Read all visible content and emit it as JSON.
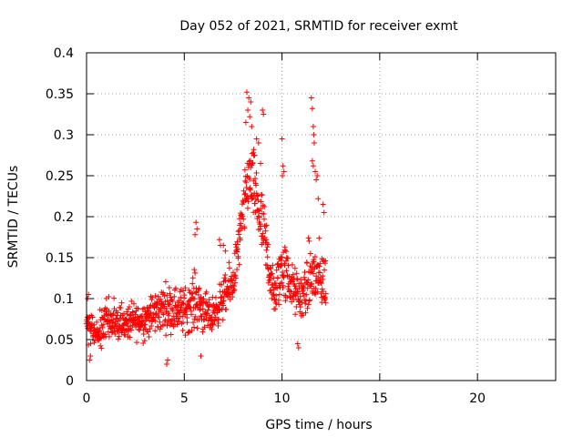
{
  "chart_data": {
    "type": "scatter",
    "title": "Day 052 of 2021, SRMTID for receiver exmt",
    "xlabel": "GPS time / hours",
    "ylabel": "SRMTID / TECUs",
    "xlim": [
      0,
      24
    ],
    "ylim": [
      0,
      0.4
    ],
    "x_ticks": [
      0,
      5,
      10,
      15,
      20
    ],
    "x_tick_labels": [
      "0",
      "5",
      "10",
      "15",
      "20"
    ],
    "y_ticks": [
      0,
      0.05,
      0.1,
      0.15,
      0.2,
      0.25,
      0.3,
      0.35,
      0.4
    ],
    "y_tick_labels": [
      "0",
      "0.05",
      "0.1",
      "0.15",
      "0.2",
      "0.25",
      "0.3",
      "0.35",
      "0.4"
    ],
    "grid": true,
    "marker": "plus",
    "color": "#ff0000",
    "series": [
      {
        "name": "SRMTID",
        "profile": [
          {
            "t": 0.0,
            "center": 0.07,
            "spread": 0.03
          },
          {
            "t": 0.5,
            "center": 0.055,
            "spread": 0.025
          },
          {
            "t": 1.0,
            "center": 0.075,
            "spread": 0.035
          },
          {
            "t": 2.0,
            "center": 0.07,
            "spread": 0.03
          },
          {
            "t": 3.0,
            "center": 0.075,
            "spread": 0.035
          },
          {
            "t": 4.0,
            "center": 0.09,
            "spread": 0.04
          },
          {
            "t": 5.0,
            "center": 0.085,
            "spread": 0.04
          },
          {
            "t": 5.6,
            "center": 0.1,
            "spread": 0.05
          },
          {
            "t": 6.3,
            "center": 0.075,
            "spread": 0.03
          },
          {
            "t": 7.0,
            "center": 0.1,
            "spread": 0.035
          },
          {
            "t": 7.5,
            "center": 0.12,
            "spread": 0.04
          },
          {
            "t": 8.0,
            "center": 0.2,
            "spread": 0.05
          },
          {
            "t": 8.3,
            "center": 0.25,
            "spread": 0.06
          },
          {
            "t": 8.7,
            "center": 0.22,
            "spread": 0.06
          },
          {
            "t": 9.2,
            "center": 0.16,
            "spread": 0.06
          },
          {
            "t": 9.6,
            "center": 0.1,
            "spread": 0.04
          },
          {
            "t": 10.0,
            "center": 0.14,
            "spread": 0.06
          },
          {
            "t": 10.6,
            "center": 0.11,
            "spread": 0.04
          },
          {
            "t": 11.0,
            "center": 0.1,
            "spread": 0.04
          },
          {
            "t": 11.5,
            "center": 0.13,
            "spread": 0.07
          },
          {
            "t": 12.2,
            "center": 0.12,
            "spread": 0.05
          }
        ],
        "highlights": [
          [
            8.2,
            0.352
          ],
          [
            8.3,
            0.345
          ],
          [
            8.4,
            0.34
          ],
          [
            8.25,
            0.33
          ],
          [
            8.35,
            0.322
          ],
          [
            8.15,
            0.315
          ],
          [
            8.45,
            0.31
          ],
          [
            9.0,
            0.33
          ],
          [
            9.05,
            0.325
          ],
          [
            8.7,
            0.295
          ],
          [
            8.8,
            0.29
          ],
          [
            8.55,
            0.282
          ],
          [
            8.6,
            0.275
          ],
          [
            8.9,
            0.265
          ],
          [
            8.4,
            0.26
          ],
          [
            10.0,
            0.295
          ],
          [
            10.05,
            0.262
          ],
          [
            10.1,
            0.255
          ],
          [
            10.02,
            0.25
          ],
          [
            11.5,
            0.345
          ],
          [
            11.55,
            0.332
          ],
          [
            11.6,
            0.31
          ],
          [
            11.62,
            0.3
          ],
          [
            11.65,
            0.29
          ],
          [
            11.55,
            0.268
          ],
          [
            11.6,
            0.262
          ],
          [
            11.7,
            0.255
          ],
          [
            11.8,
            0.25
          ],
          [
            11.75,
            0.245
          ],
          [
            11.85,
            0.222
          ],
          [
            12.1,
            0.215
          ],
          [
            12.15,
            0.205
          ],
          [
            5.6,
            0.193
          ],
          [
            5.65,
            0.185
          ],
          [
            5.55,
            0.178
          ],
          [
            6.8,
            0.172
          ],
          [
            6.85,
            0.165
          ],
          [
            7.0,
            0.165
          ],
          [
            7.1,
            0.158
          ],
          [
            4.1,
            0.02
          ],
          [
            4.15,
            0.025
          ],
          [
            5.85,
            0.03
          ],
          [
            10.8,
            0.045
          ],
          [
            10.85,
            0.04
          ],
          [
            0.15,
            0.025
          ],
          [
            0.2,
            0.03
          ],
          [
            0.05,
            0.1
          ],
          [
            0.1,
            0.105
          ]
        ],
        "t_start": 0.0,
        "t_end": 12.25,
        "t_step": 0.0125
      }
    ]
  }
}
